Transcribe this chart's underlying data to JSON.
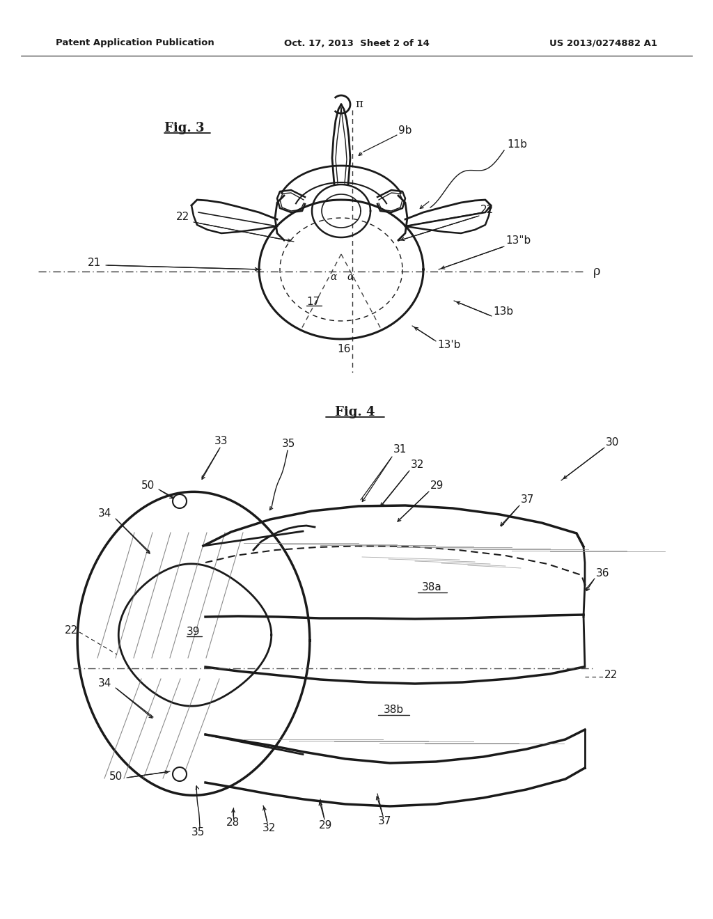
{
  "background_color": "#ffffff",
  "header": {
    "left": "Patent Application Publication",
    "center": "Oct. 17, 2013  Sheet 2 of 14",
    "right": "US 2013/0274882 A1"
  },
  "text_color": "#1a1a1a",
  "line_color": "#1a1a1a"
}
